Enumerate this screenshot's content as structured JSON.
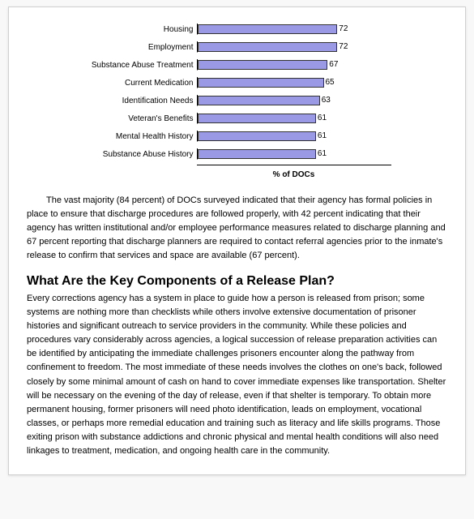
{
  "chart": {
    "type": "bar-horizontal",
    "xlabel": "% of DOCs",
    "xmax": 100,
    "bar_color": "#9999e6",
    "bar_border": "#333333",
    "label_fontsize": 10,
    "value_fontsize": 10,
    "rows": [
      {
        "label": "Housing",
        "value": 72
      },
      {
        "label": "Employment",
        "value": 72
      },
      {
        "label": "Substance Abuse Treatment",
        "value": 67
      },
      {
        "label": "Current Medication",
        "value": 65
      },
      {
        "label": "Identification Needs",
        "value": 63
      },
      {
        "label": "Veteran's Benefits",
        "value": 61
      },
      {
        "label": "Mental Health History",
        "value": 61
      },
      {
        "label": "Substance Abuse History",
        "value": 61
      }
    ]
  },
  "paragraph1": "The vast majority (84 percent) of DOCs surveyed indicated that their agency has formal policies in place to ensure that discharge procedures are followed properly, with 42 percent indicating that their agency has written institutional and/or employee performance measures related to discharge planning and 67 percent reporting that discharge planners are required to contact referral agencies prior to the inmate's release to confirm that services and space are available (67 percent).",
  "heading": "What Are the Key Components of a Release Plan?",
  "paragraph2": "Every corrections agency has a system in place to guide how a person is released from prison; some systems are nothing more than checklists while others involve extensive documentation of prisoner histories and significant outreach to service providers in the community. While these policies and procedures vary considerably across agencies, a logical succession of release preparation activities can be identified by anticipating the immediate challenges prisoners encounter along the pathway from confinement to freedom. The most immediate of these needs involves the clothes on one's back, followed closely by some minimal amount of cash on hand to cover immediate expenses like transportation. Shelter will be necessary on the evening of the day of release, even if that shelter is temporary. To obtain more permanent housing, former prisoners will need photo identification, leads on employment, vocational classes, or perhaps more remedial education and training such as literacy and life skills programs. Those exiting prison with substance addictions and chronic physical and mental health conditions will also need linkages to treatment, medication, and ongoing health care in the community."
}
